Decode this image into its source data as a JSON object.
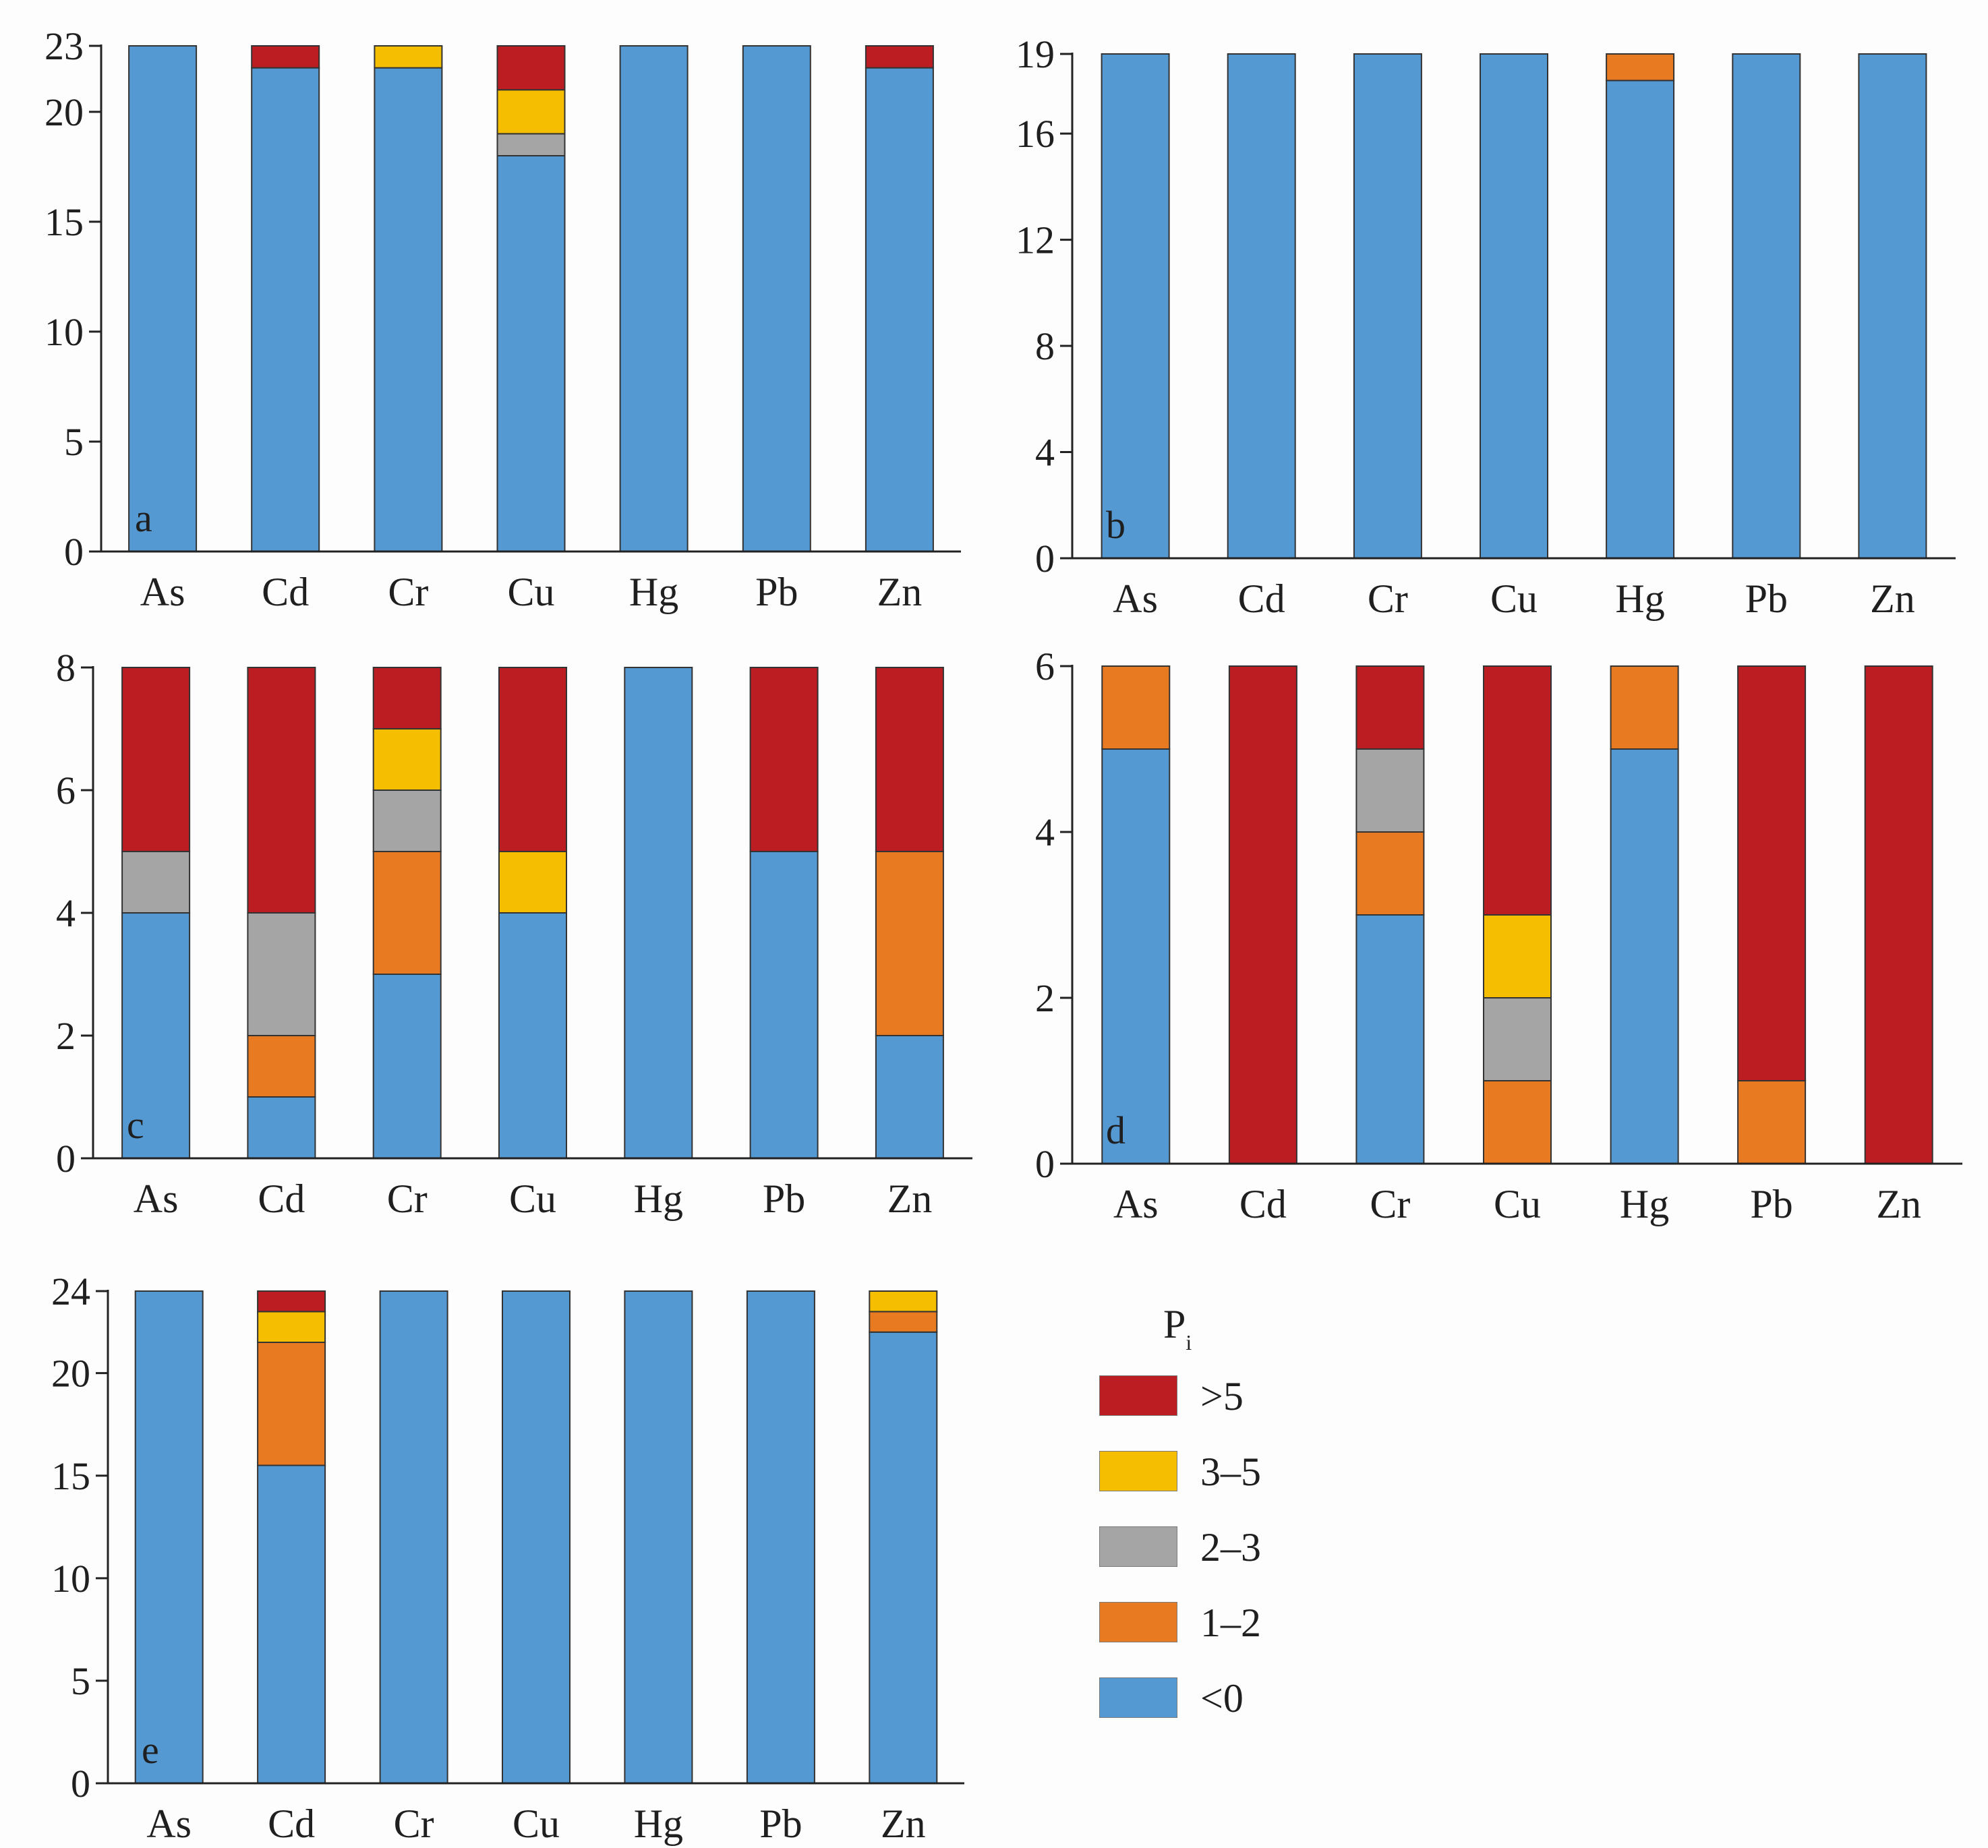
{
  "colors": {
    "lt0": "#5599d3",
    "c1_2": "#e87a22",
    "c2_3": "#a5a5a5",
    "c3_5": "#f6be00",
    "gt5": "#bb1d22"
  },
  "legend": {
    "title": "P",
    "title_sub": "i",
    "items": [
      {
        "key": "gt5",
        "label": ">5"
      },
      {
        "key": "c3_5",
        "label": "3–5"
      },
      {
        "key": "c2_3",
        "label": "2–3"
      },
      {
        "key": "c1_2",
        "label": "1–2"
      },
      {
        "key": "lt0",
        "label": "<0"
      }
    ]
  },
  "chart_data": [
    {
      "type": "bar",
      "stacked": true,
      "panel_label": "a",
      "categories": [
        "As",
        "Cd",
        "Cr",
        "Cu",
        "Hg",
        "Pb",
        "Zn"
      ],
      "ylim": [
        0,
        23
      ],
      "yticks": [
        0,
        5,
        10,
        15,
        20,
        23
      ],
      "series": [
        {
          "name": "<0",
          "key": "lt0",
          "values": [
            23,
            22,
            22,
            18,
            23,
            23,
            22
          ]
        },
        {
          "name": "1–2",
          "key": "c1_2",
          "values": [
            0,
            0,
            0,
            0,
            0,
            0,
            0
          ]
        },
        {
          "name": "2–3",
          "key": "c2_3",
          "values": [
            0,
            0,
            0,
            1,
            0,
            0,
            0
          ]
        },
        {
          "name": "3–5",
          "key": "c3_5",
          "values": [
            0,
            0,
            1,
            2,
            0,
            0,
            0
          ]
        },
        {
          "name": ">5",
          "key": "gt5",
          "values": [
            0,
            1,
            0,
            2,
            0,
            0,
            1
          ]
        }
      ]
    },
    {
      "type": "bar",
      "stacked": true,
      "panel_label": "b",
      "categories": [
        "As",
        "Cd",
        "Cr",
        "Cu",
        "Hg",
        "Pb",
        "Zn"
      ],
      "ylim": [
        0,
        19
      ],
      "yticks": [
        0,
        4,
        8,
        12,
        16,
        19
      ],
      "series": [
        {
          "name": "<0",
          "key": "lt0",
          "values": [
            19,
            19,
            19,
            19,
            18,
            19,
            19
          ]
        },
        {
          "name": "1–2",
          "key": "c1_2",
          "values": [
            0,
            0,
            0,
            0,
            1,
            0,
            0
          ]
        },
        {
          "name": "2–3",
          "key": "c2_3",
          "values": [
            0,
            0,
            0,
            0,
            0,
            0,
            0
          ]
        },
        {
          "name": "3–5",
          "key": "c3_5",
          "values": [
            0,
            0,
            0,
            0,
            0,
            0,
            0
          ]
        },
        {
          "name": ">5",
          "key": "gt5",
          "values": [
            0,
            0,
            0,
            0,
            0,
            0,
            0
          ]
        }
      ]
    },
    {
      "type": "bar",
      "stacked": true,
      "panel_label": "c",
      "categories": [
        "As",
        "Cd",
        "Cr",
        "Cu",
        "Hg",
        "Pb",
        "Zn"
      ],
      "ylim": [
        0,
        8
      ],
      "yticks": [
        0,
        2,
        4,
        6,
        8
      ],
      "series": [
        {
          "name": "<0",
          "key": "lt0",
          "values": [
            4,
            1,
            3,
            4,
            8,
            5,
            2
          ]
        },
        {
          "name": "1–2",
          "key": "c1_2",
          "values": [
            0,
            1,
            2,
            0,
            0,
            0,
            3
          ]
        },
        {
          "name": "2–3",
          "key": "c2_3",
          "values": [
            1,
            2,
            1,
            0,
            0,
            0,
            0
          ]
        },
        {
          "name": "3–5",
          "key": "c3_5",
          "values": [
            0,
            0,
            1,
            1,
            0,
            0,
            0
          ]
        },
        {
          "name": ">5",
          "key": "gt5",
          "values": [
            3,
            4,
            1,
            3,
            0,
            3,
            3
          ]
        }
      ]
    },
    {
      "type": "bar",
      "stacked": true,
      "panel_label": "d",
      "categories": [
        "As",
        "Cd",
        "Cr",
        "Cu",
        "Hg",
        "Pb",
        "Zn"
      ],
      "ylim": [
        0,
        6
      ],
      "yticks": [
        0,
        2,
        4,
        6
      ],
      "series": [
        {
          "name": "<0",
          "key": "lt0",
          "values": [
            5,
            0,
            3,
            0,
            5,
            0,
            0
          ]
        },
        {
          "name": "1–2",
          "key": "c1_2",
          "values": [
            1,
            0,
            1,
            1,
            1,
            1,
            0
          ]
        },
        {
          "name": "2–3",
          "key": "c2_3",
          "values": [
            0,
            0,
            1,
            1,
            0,
            0,
            0
          ]
        },
        {
          "name": "3–5",
          "key": "c3_5",
          "values": [
            0,
            0,
            0,
            1,
            0,
            0,
            0
          ]
        },
        {
          "name": ">5",
          "key": "gt5",
          "values": [
            0,
            6,
            1,
            3,
            0,
            5,
            6
          ]
        }
      ]
    },
    {
      "type": "bar",
      "stacked": true,
      "panel_label": "e",
      "categories": [
        "As",
        "Cd",
        "Cr",
        "Cu",
        "Hg",
        "Pb",
        "Zn"
      ],
      "ylim": [
        0,
        24
      ],
      "yticks": [
        0,
        5,
        10,
        15,
        20,
        24
      ],
      "series": [
        {
          "name": "<0",
          "key": "lt0",
          "values": [
            24,
            15.5,
            24,
            24,
            24,
            24,
            22
          ]
        },
        {
          "name": "1–2",
          "key": "c1_2",
          "values": [
            0,
            6,
            0,
            0,
            0,
            0,
            1
          ]
        },
        {
          "name": "2–3",
          "key": "c2_3",
          "values": [
            0,
            0,
            0,
            0,
            0,
            0,
            0
          ]
        },
        {
          "name": "3–5",
          "key": "c3_5",
          "values": [
            0,
            1.5,
            0,
            0,
            0,
            0,
            1
          ]
        },
        {
          "name": ">5",
          "key": "gt5",
          "values": [
            0,
            1,
            0,
            0,
            0,
            0,
            0
          ]
        }
      ]
    }
  ]
}
